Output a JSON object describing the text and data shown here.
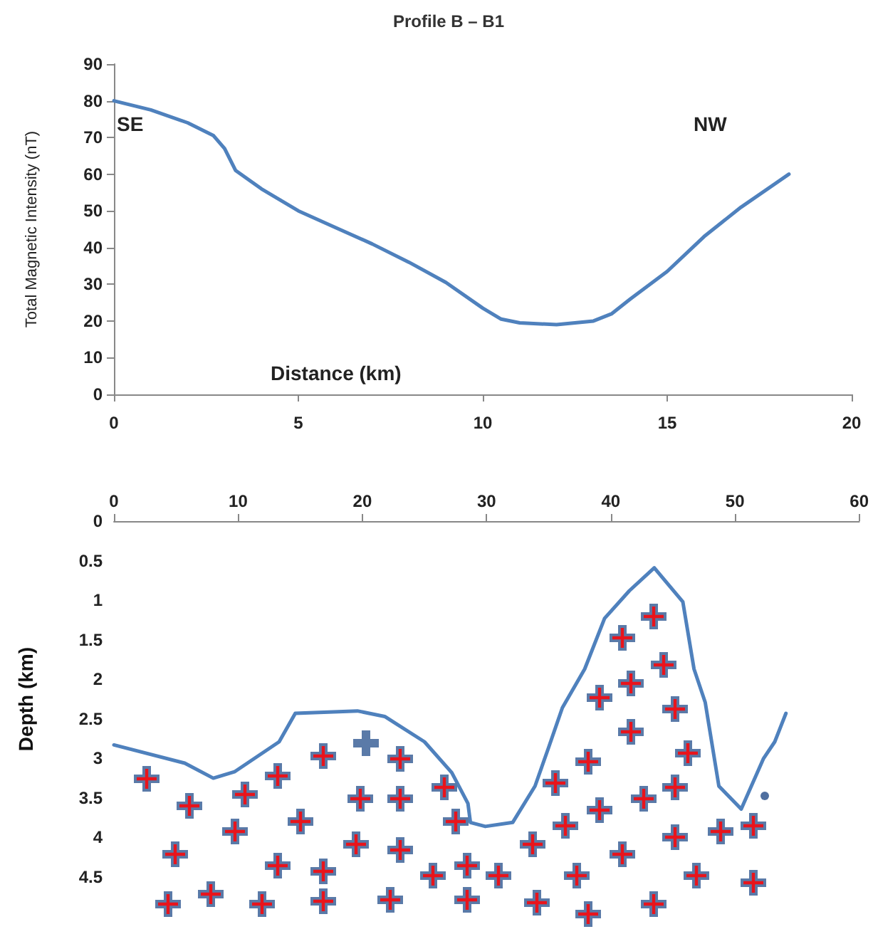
{
  "chart_data": [
    {
      "type": "line",
      "title": "Profile B – B1",
      "xlabel": "Distance (km)",
      "ylabel": "Total Magnetic Intensity (nT)",
      "annotations": [
        "SE",
        "NW"
      ],
      "x": [
        0,
        1,
        2,
        2.7,
        3,
        3.3,
        4,
        5,
        6,
        7,
        8,
        9,
        10,
        10.5,
        11,
        12,
        13,
        13.5,
        14,
        15,
        16,
        17,
        18.3
      ],
      "values": [
        80,
        77.5,
        74,
        70.5,
        67,
        61,
        56,
        50,
        45.5,
        41,
        36,
        30.5,
        23.5,
        20.5,
        19.5,
        19,
        20,
        22,
        26,
        33.5,
        43,
        51,
        60
      ],
      "color": "#4f81bd",
      "xlim": [
        0,
        20
      ],
      "xticks": [
        0,
        5,
        10,
        15,
        20
      ],
      "ylim": [
        0,
        90
      ],
      "yticks": [
        0,
        10,
        20,
        30,
        40,
        50,
        60,
        70,
        80,
        90
      ]
    },
    {
      "type": "line",
      "ylabel": "Depth (km)",
      "x": [
        0,
        5.7,
        8,
        9.7,
        13.3,
        14.6,
        19.6,
        21.8,
        25,
        27.2,
        28.5,
        28.7,
        29.9,
        32.1,
        33.9,
        35,
        36.1,
        37.9,
        39.5,
        41.5,
        43.5,
        45.8,
        46.7,
        47.6,
        48.7,
        50.5,
        52.3,
        53.2,
        54.1
      ],
      "values": [
        2.83,
        3.06,
        3.25,
        3.17,
        2.79,
        2.43,
        2.4,
        2.47,
        2.79,
        3.18,
        3.57,
        3.81,
        3.86,
        3.81,
        3.35,
        2.86,
        2.36,
        1.87,
        1.23,
        0.88,
        0.59,
        1.02,
        1.87,
        2.29,
        3.35,
        3.64,
        3,
        2.79,
        2.43
      ],
      "color": "#4f81bd",
      "xlim": [
        0,
        60
      ],
      "xticks": [
        0,
        10,
        20,
        30,
        40,
        50,
        60
      ],
      "ylim": [
        4.5,
        0
      ],
      "yticks": [
        0,
        0.5,
        1,
        1.5,
        2,
        2.5,
        3,
        3.5,
        4,
        4.5
      ]
    }
  ]
}
